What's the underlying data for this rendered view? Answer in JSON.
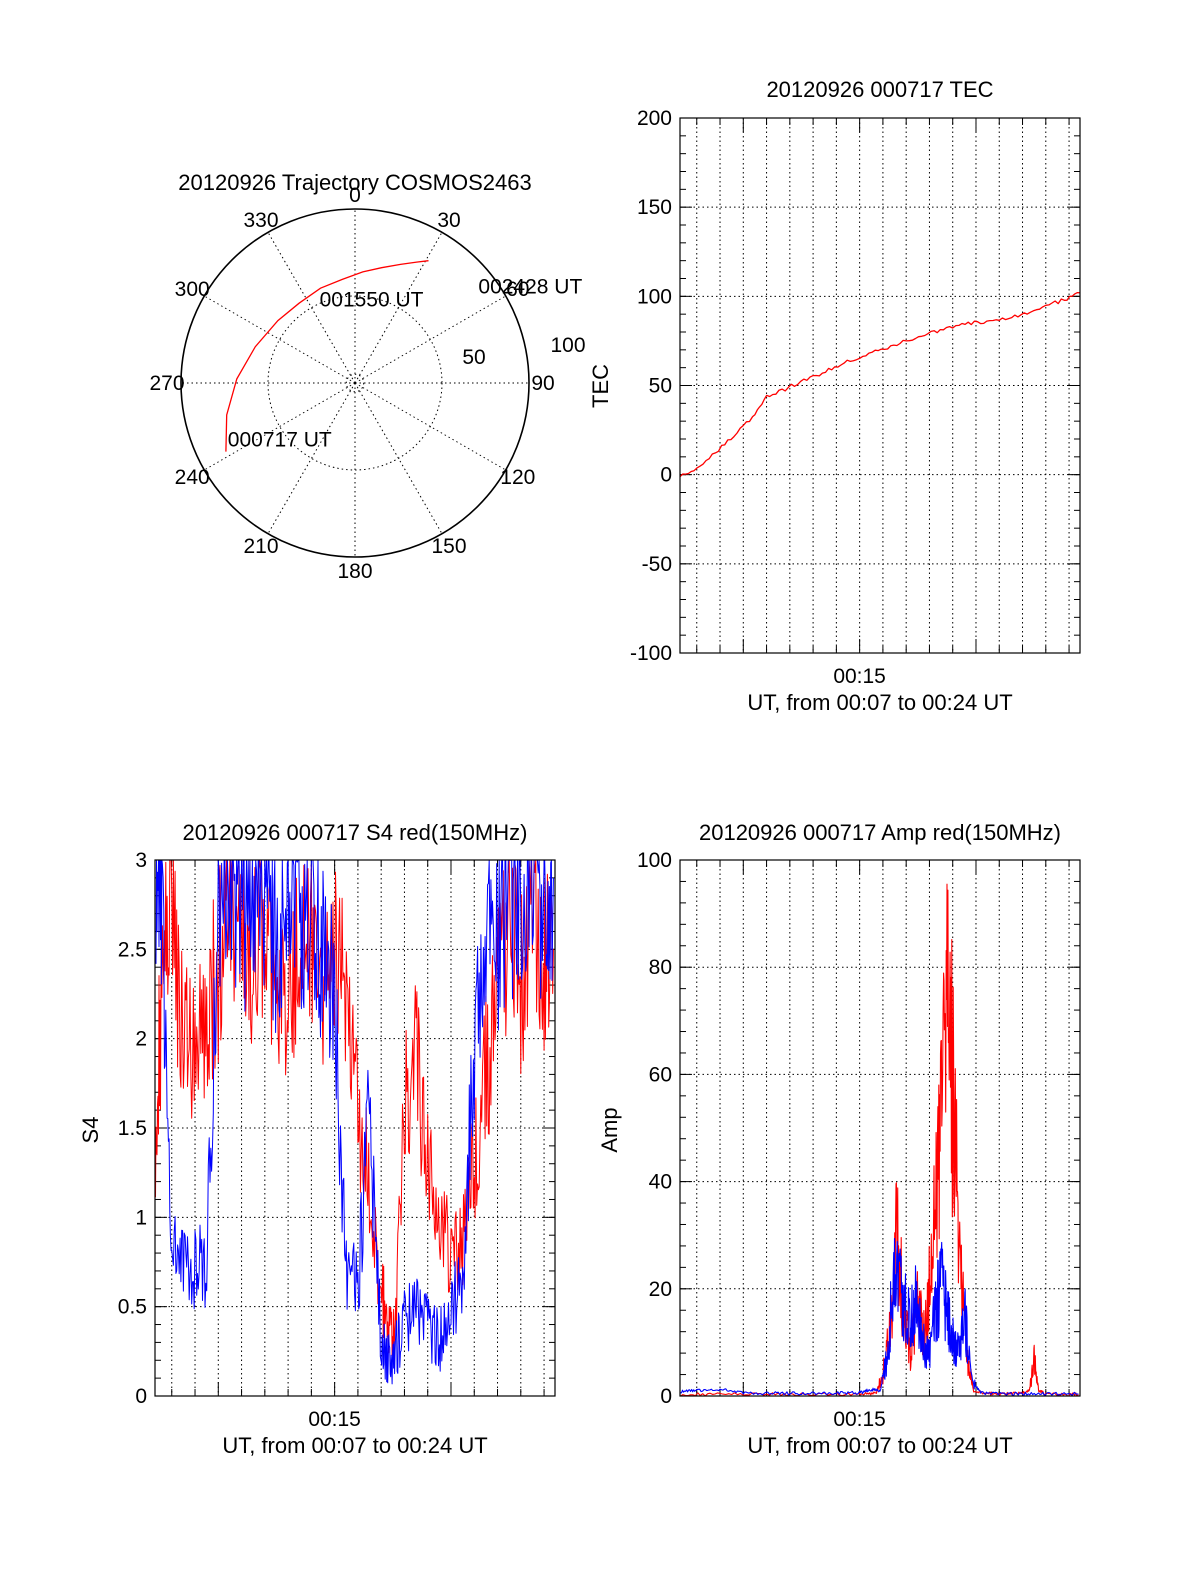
{
  "colors": {
    "red": "#ff0000",
    "blue": "#0000ff",
    "axis": "#000000"
  },
  "chart_data": [
    {
      "type": "polar",
      "title": "20120926 Trajectory COSMOS2463",
      "azimuth_labels": [
        "0",
        "30",
        "60",
        "90",
        "120",
        "150",
        "180",
        "210",
        "240",
        "270",
        "300",
        "330"
      ],
      "radial_labels": [
        "50",
        "100"
      ],
      "grid": true,
      "trajectory": [
        {
          "az": 242,
          "zen": 84
        },
        {
          "az": 256,
          "zen": 76
        },
        {
          "az": 272,
          "zen": 68
        },
        {
          "az": 290,
          "zen": 61
        },
        {
          "az": 309,
          "zen": 57
        },
        {
          "az": 325,
          "zen": 56
        },
        {
          "az": 340,
          "zen": 58
        },
        {
          "az": 353,
          "zen": 60
        },
        {
          "az": 4,
          "zen": 64
        },
        {
          "az": 13,
          "zen": 68
        },
        {
          "az": 21,
          "zen": 73
        },
        {
          "az": 27,
          "zen": 78
        },
        {
          "az": 31,
          "zen": 82
        }
      ],
      "annotations": [
        {
          "text": "000717 UT",
          "az": 246,
          "zen": 80
        },
        {
          "text": "001550 UT",
          "az": 337,
          "zen": 52
        },
        {
          "text": "002428 UT",
          "az": 52,
          "zen": 90
        }
      ]
    },
    {
      "type": "line",
      "title": "20120926 000717 TEC",
      "xlabel": "UT, from 00:07 to 00:24 UT",
      "ylabel": "TEC",
      "xlim": [
        7.28,
        24.47
      ],
      "ylim": [
        -100,
        200
      ],
      "yticks": [
        "200",
        "150",
        "100",
        "50",
        "0",
        "-50",
        "-100"
      ],
      "xticks": [
        {
          "label": "00:15",
          "x": 15
        }
      ],
      "grid": true,
      "series": [
        {
          "color": "#ff0000",
          "x": [
            7.28,
            8.0,
            8.8,
            9.6,
            10.4,
            11.0,
            11.8,
            12.6,
            13.4,
            14.2,
            15.0,
            15.8,
            16.6,
            17.4,
            18.2,
            19.0,
            19.8,
            20.6,
            21.4,
            22.2,
            23.0,
            23.8,
            24.47
          ],
          "values": [
            0,
            3,
            12,
            22,
            32,
            44,
            48,
            53,
            57,
            62,
            66,
            70,
            73,
            77,
            80,
            83,
            85,
            86,
            88,
            91,
            95,
            98,
            102
          ]
        }
      ]
    },
    {
      "type": "line",
      "title": "20120926 000717 S4 red(150MHz)",
      "xlabel": "UT, from 00:07 to 00:24 UT",
      "ylabel": "S4",
      "xlim": [
        7.28,
        24.47
      ],
      "ylim": [
        0,
        3
      ],
      "yticks": [
        "3",
        "2.5",
        "2",
        "1.5",
        "1",
        "0.5",
        "0"
      ],
      "xticks": [
        {
          "label": "00:15",
          "x": 15
        }
      ],
      "grid": true,
      "series": [
        {
          "color": "#ff0000",
          "x": [
            7.3,
            7.6,
            8.0,
            8.5,
            9.0,
            9.5,
            10.0,
            10.5,
            11.0,
            11.5,
            12.0,
            12.5,
            13.0,
            13.5,
            14.0,
            14.5,
            15.0,
            15.5,
            16.0,
            16.5,
            17.0,
            17.3,
            17.6,
            18.0,
            18.5,
            19.0,
            19.5,
            20.0,
            20.5,
            21.0,
            21.5,
            22.0,
            22.5,
            23.0,
            23.5,
            24.0,
            24.4
          ],
          "values": [
            1.5,
            2.3,
            2.7,
            2.0,
            1.9,
            2.1,
            2.4,
            2.8,
            2.6,
            2.5,
            2.7,
            2.4,
            2.3,
            2.5,
            2.6,
            2.2,
            2.5,
            2.3,
            1.6,
            1.2,
            0.6,
            0.4,
            0.3,
            1.6,
            1.9,
            1.3,
            1.0,
            0.8,
            0.9,
            1.3,
            1.8,
            2.2,
            2.6,
            2.3,
            2.7,
            2.4,
            2.5
          ]
        },
        {
          "color": "#0000ff",
          "x": [
            7.3,
            7.6,
            8.0,
            8.5,
            9.0,
            9.5,
            10.0,
            10.5,
            11.0,
            11.5,
            12.0,
            12.5,
            13.0,
            13.5,
            14.0,
            14.5,
            15.0,
            15.5,
            16.0,
            16.5,
            17.0,
            17.3,
            17.6,
            18.0,
            18.5,
            19.0,
            19.5,
            20.0,
            20.5,
            21.0,
            21.5,
            22.0,
            22.5,
            23.0,
            23.5,
            24.0,
            24.4
          ],
          "values": [
            2.9,
            2.6,
            0.75,
            0.78,
            0.72,
            0.7,
            2.8,
            2.9,
            2.7,
            2.9,
            2.8,
            2.6,
            2.9,
            2.7,
            2.9,
            2.5,
            2.2,
            0.7,
            0.6,
            1.6,
            0.3,
            0.2,
            0.25,
            0.4,
            0.5,
            0.4,
            0.3,
            0.45,
            0.7,
            1.9,
            2.8,
            2.6,
            2.9,
            2.7,
            2.9,
            2.8,
            2.9
          ]
        }
      ]
    },
    {
      "type": "line",
      "title": "20120926 000717 Amp red(150MHz)",
      "xlabel": "UT, from 00:07 to 00:24 UT",
      "ylabel": "Amp",
      "xlim": [
        7.28,
        24.47
      ],
      "ylim": [
        0,
        100
      ],
      "yticks": [
        "100",
        "80",
        "60",
        "40",
        "20",
        "0"
      ],
      "xticks": [
        {
          "label": "00:15",
          "x": 15
        }
      ],
      "grid": true,
      "series": [
        {
          "color": "#ff0000",
          "x": [
            7.3,
            9.0,
            11.0,
            13.0,
            15.0,
            15.7,
            16.0,
            16.3,
            16.6,
            16.9,
            17.2,
            17.5,
            17.8,
            18.1,
            18.4,
            18.7,
            19.0,
            19.3,
            19.6,
            19.9,
            20.5,
            21.0,
            21.5,
            22.0,
            22.3,
            22.5,
            22.7,
            23.0,
            24.0,
            24.4
          ],
          "values": [
            0.3,
            0.3,
            0.3,
            0.3,
            0.3,
            0.5,
            4,
            12,
            30,
            16,
            8,
            20,
            11,
            26,
            45,
            76,
            58,
            28,
            8,
            1,
            0.5,
            0.4,
            0.4,
            0.5,
            1,
            7,
            1,
            0.4,
            0.3,
            0.3
          ]
        },
        {
          "color": "#0000ff",
          "x": [
            7.3,
            8.0,
            9.0,
            10.0,
            11.0,
            12.0,
            13.0,
            14.0,
            15.0,
            15.5,
            15.9,
            16.2,
            16.5,
            16.8,
            17.1,
            17.4,
            17.7,
            18.0,
            18.3,
            18.6,
            18.9,
            19.2,
            19.5,
            19.8,
            20.2,
            21.0,
            22.0,
            23.0,
            24.4
          ],
          "values": [
            0.8,
            1.0,
            1.2,
            0.6,
            0.5,
            0.5,
            0.5,
            0.5,
            0.6,
            1.2,
            1.0,
            8,
            24,
            20,
            15,
            18,
            10,
            8,
            17,
            21,
            12,
            8,
            16,
            3,
            0.6,
            0.4,
            0.4,
            0.4,
            0.4
          ]
        }
      ]
    }
  ]
}
